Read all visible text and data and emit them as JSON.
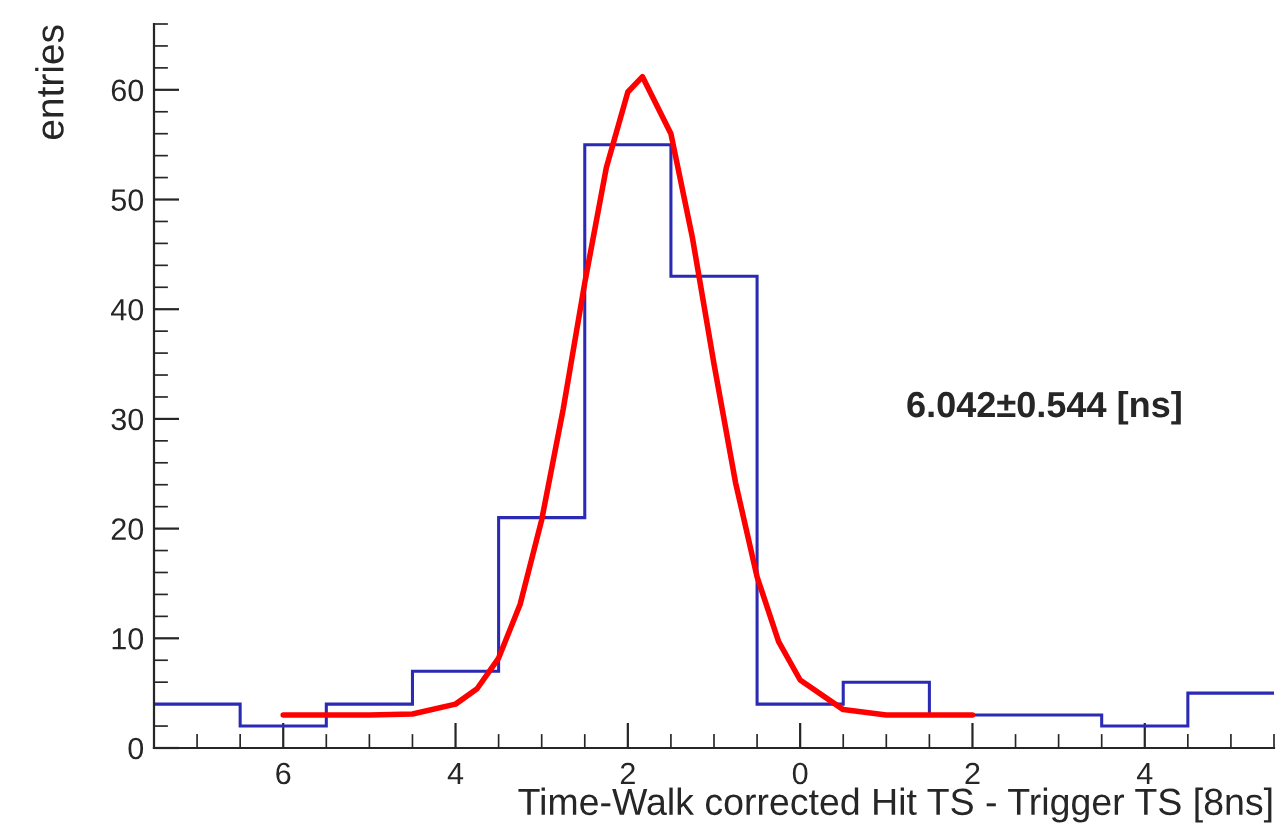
{
  "chart_data": {
    "type": "histogram",
    "xlabel": "Time-Walk corrected Hit TS - Trigger TS [8ns]",
    "ylabel": "entries",
    "annotations": [
      "6.042±0.544 [ns]"
    ],
    "bins": [
      -5.5,
      -4.5,
      -3.5,
      -2.5,
      -1.5,
      -0.5,
      0.5,
      1.5,
      2.5,
      3.5,
      4.5,
      5.5,
      6.5,
      7.5
    ],
    "series": [
      {
        "color": "#2a2ab4",
        "values": [
          5,
          2,
          3,
          3,
          6,
          4,
          43,
          55,
          21,
          7,
          4,
          2,
          4
        ]
      },
      {
        "type": "line",
        "color": "#ff0000",
        "x": [
          6,
          5,
          4.5,
          4,
          3.75,
          3.5,
          3.25,
          3,
          2.75,
          2.5,
          2.25,
          2,
          1.83,
          1.5,
          1.25,
          1,
          0.75,
          0.5,
          0.25,
          0,
          -0.5,
          -1,
          -2
        ],
        "values": [
          3.0,
          3.0,
          3.1,
          4.0,
          5.4,
          8.2,
          13.1,
          20.8,
          30.9,
          42.4,
          52.9,
          59.8,
          61.2,
          56,
          46.5,
          35,
          24.2,
          15.6,
          9.7,
          6.2,
          3.5,
          3.0,
          3.0
        ]
      }
    ],
    "xlim": [
      7.5,
      -5.5
    ],
    "xticks": [
      6,
      4,
      2,
      0,
      {
        "value": -2,
        "label": "2"
      },
      {
        "value": -4,
        "label": "4"
      }
    ],
    "ylim": [
      0,
      66
    ],
    "yticks": [
      0,
      10,
      20,
      30,
      40,
      50,
      60
    ],
    "grid": false,
    "legend": false
  }
}
